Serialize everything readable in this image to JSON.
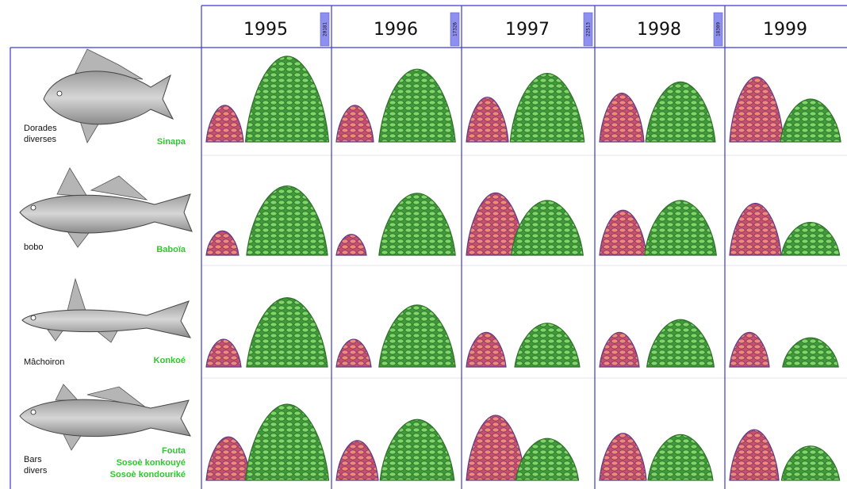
{
  "chart_data": {
    "type": "pictogram",
    "years": [
      "1995",
      "1996",
      "1997",
      "1998",
      "1999"
    ],
    "year_badges": [
      "20181",
      "17326",
      "22513",
      "18309",
      ""
    ],
    "series": [
      {
        "name": "red",
        "color": "#e0707a"
      },
      {
        "name": "green",
        "color": "#5fbf4a"
      }
    ],
    "species": [
      {
        "french": [
          "Dorades",
          "diverses"
        ],
        "local": [
          "Sinapa"
        ],
        "icon": "dorade-fish-icon",
        "values": [
          [
            0.45,
            1.0
          ],
          [
            0.45,
            0.85
          ],
          [
            0.55,
            0.8
          ],
          [
            0.6,
            0.7
          ],
          [
            0.8,
            0.5
          ]
        ]
      },
      {
        "french": [
          "bobo"
        ],
        "local": [
          "Baboïa"
        ],
        "icon": "bobo-fish-icon",
        "values": [
          [
            0.35,
            0.95
          ],
          [
            0.3,
            0.85
          ],
          [
            0.9,
            0.75
          ],
          [
            0.65,
            0.75
          ],
          [
            0.75,
            0.45
          ]
        ]
      },
      {
        "french": [
          "Mâchoiron"
        ],
        "local": [
          "Konkoé"
        ],
        "icon": "machoiron-fish-icon",
        "values": [
          [
            0.4,
            0.95
          ],
          [
            0.4,
            0.85
          ],
          [
            0.5,
            0.6
          ],
          [
            0.5,
            0.65
          ],
          [
            0.5,
            0.4
          ]
        ]
      },
      {
        "french": [
          "Bars",
          "divers"
        ],
        "local": [
          "Fouta",
          "Sosoè konkouyé",
          "Sosoè kondouriké"
        ],
        "icon": "bar-fish-icon",
        "values": [
          [
            0.6,
            1.0
          ],
          [
            0.55,
            0.8
          ],
          [
            0.9,
            0.55
          ],
          [
            0.65,
            0.6
          ],
          [
            0.7,
            0.45
          ]
        ]
      }
    ]
  }
}
